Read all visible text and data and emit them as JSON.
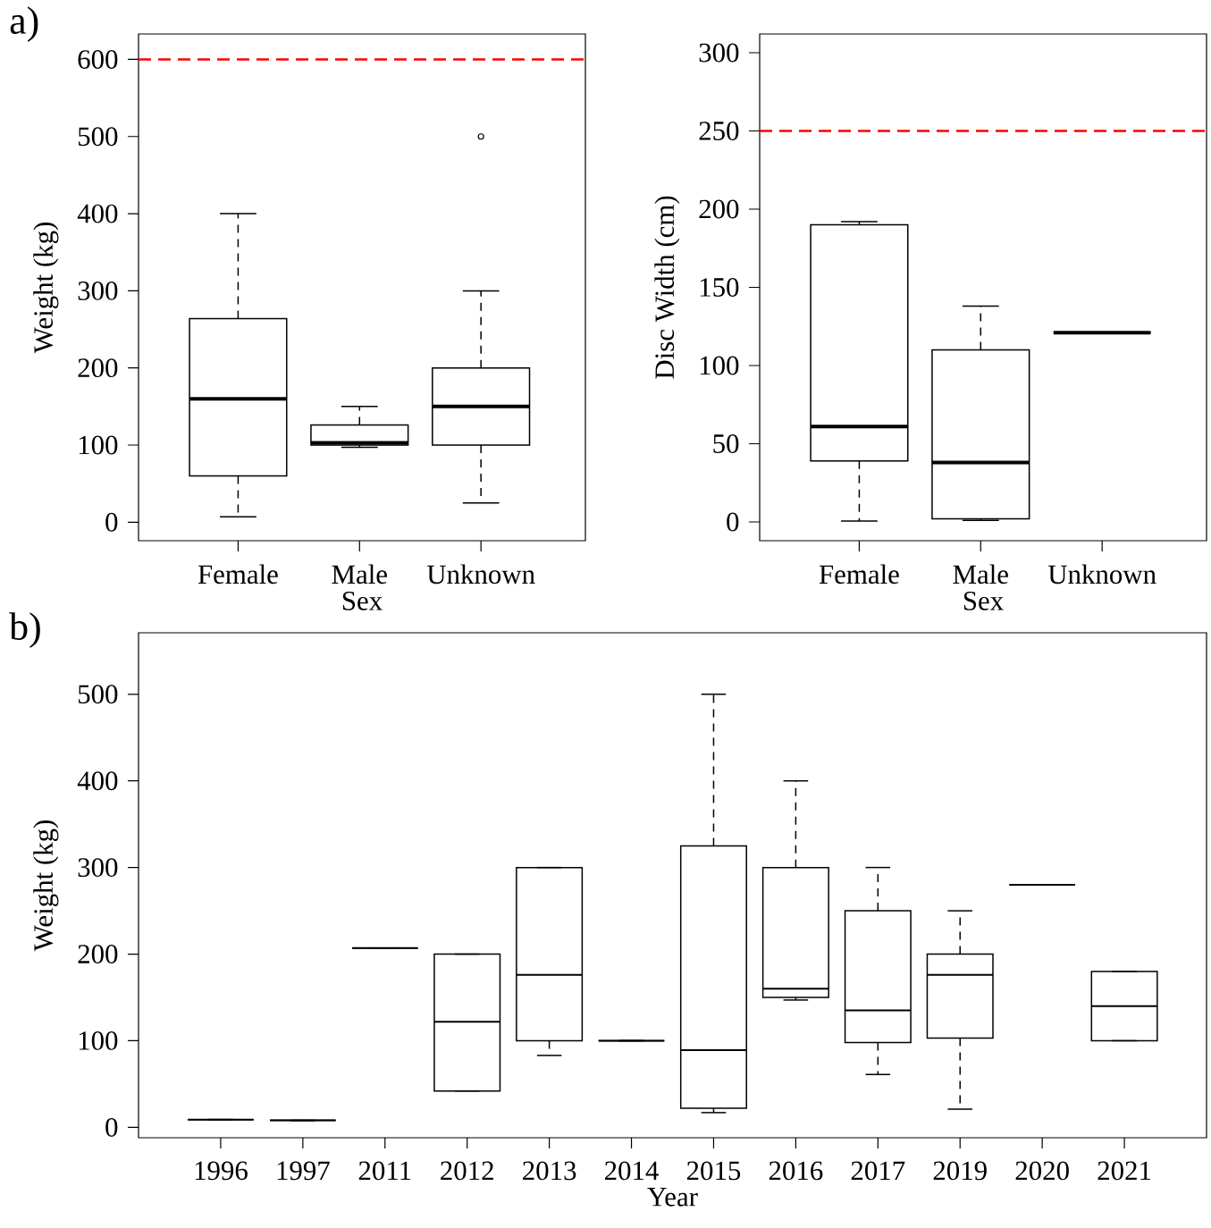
{
  "chart_data": [
    {
      "type": "box",
      "annotations": [
        "a)"
      ],
      "xlabel": "Sex",
      "ylabel": "Weight (kg)",
      "categories": [
        "Female",
        "Male",
        "Unknown"
      ],
      "boxes": [
        {
          "low": 7,
          "q1": 60,
          "median": 160,
          "q3": 264,
          "high": 400
        },
        {
          "low": 97,
          "q1": 100,
          "median": 103,
          "q3": 126,
          "high": 150
        },
        {
          "low": 25,
          "q1": 100,
          "median": 150,
          "q3": 200,
          "high": 300,
          "outliers": [
            500
          ]
        }
      ],
      "ylim": [
        -24,
        633
      ],
      "yticks": [
        0,
        100,
        200,
        300,
        400,
        500,
        600
      ],
      "ref_lines": [
        {
          "axis": "y",
          "value": 600,
          "color": "#ff0000",
          "line_style": "dashed"
        }
      ]
    },
    {
      "type": "box",
      "xlabel": "Sex",
      "ylabel": "Disc Width (cm)",
      "categories": [
        "Female",
        "Male",
        "Unknown"
      ],
      "boxes": [
        {
          "low": 0.5,
          "q1": 39,
          "median": 61,
          "q3": 190,
          "high": 192
        },
        {
          "low": 1,
          "q1": 2,
          "median": 38,
          "q3": 110,
          "high": 138
        },
        {
          "low": 121,
          "q1": 121,
          "median": 121,
          "q3": 121,
          "high": 121
        }
      ],
      "ylim": [
        -12,
        312
      ],
      "yticks": [
        0,
        50,
        100,
        150,
        200,
        250,
        300
      ],
      "ref_lines": [
        {
          "axis": "y",
          "value": 250,
          "color": "#ff0000",
          "line_style": "dashed"
        }
      ]
    },
    {
      "type": "box",
      "annotations": [
        "b)"
      ],
      "xlabel": "Year",
      "ylabel": "Weight (kg)",
      "categories": [
        "1996",
        "1997",
        "2011",
        "2012",
        "2013",
        "2014",
        "2015",
        "2016",
        "2017",
        "2019",
        "2020",
        "2021"
      ],
      "boxes": [
        {
          "low": 9,
          "q1": 9,
          "median": 9,
          "q3": 9,
          "high": 9
        },
        {
          "low": 8,
          "q1": 8,
          "median": 8,
          "q3": 8,
          "high": 8
        },
        {
          "low": 207,
          "q1": 207,
          "median": 207,
          "q3": 207,
          "high": 207
        },
        {
          "low": 42,
          "q1": 42,
          "median": 122,
          "q3": 200,
          "high": 200
        },
        {
          "low": 83,
          "q1": 100,
          "median": 176,
          "q3": 300,
          "high": 300
        },
        {
          "low": 100,
          "q1": 100,
          "median": 100,
          "q3": 100,
          "high": 100
        },
        {
          "low": 17,
          "q1": 22,
          "median": 89,
          "q3": 325,
          "high": 500
        },
        {
          "low": 147,
          "q1": 150,
          "median": 160,
          "q3": 300,
          "high": 400
        },
        {
          "low": 61,
          "q1": 98,
          "median": 135,
          "q3": 250,
          "high": 300
        },
        {
          "low": 21,
          "q1": 103,
          "median": 176,
          "q3": 200,
          "high": 250
        },
        {
          "low": 280,
          "q1": 280,
          "median": 280,
          "q3": 280,
          "high": 280
        },
        {
          "low": 100,
          "q1": 100,
          "median": 140,
          "q3": 180,
          "high": 180
        }
      ],
      "ylim": [
        -12,
        571
      ],
      "yticks": [
        0,
        100,
        200,
        300,
        400,
        500
      ]
    }
  ]
}
